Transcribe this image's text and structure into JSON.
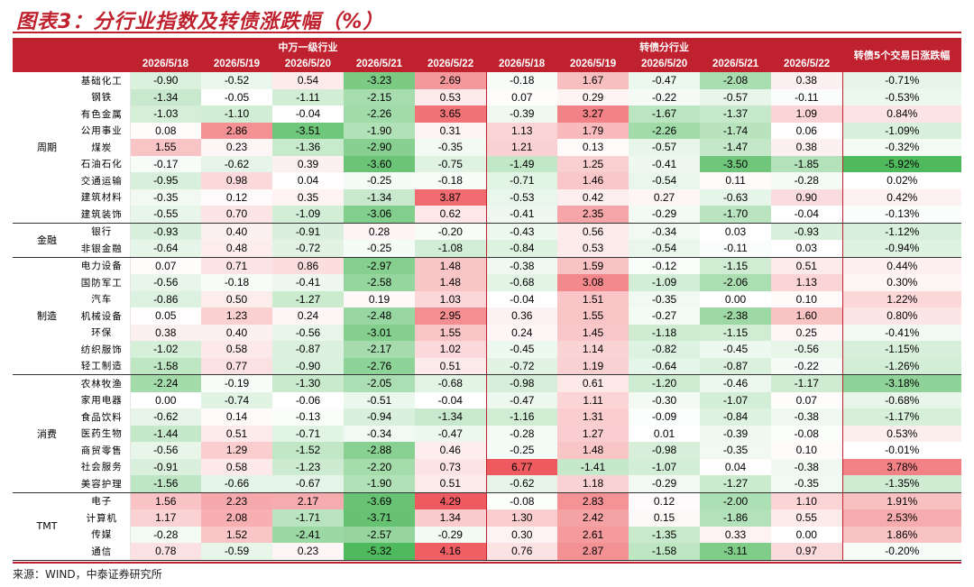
{
  "title": "图表3：分行业指数及转债涨跌幅（%）",
  "source": "来源：WIND，中泰证券研究所",
  "headers": {
    "group_left": "中万一级行业",
    "group_right": "转债分行业",
    "last_col": "转债5个交易日涨跌幅",
    "dates_left": [
      "2026/5/18",
      "2026/5/19",
      "2026/5/20",
      "2026/5/21",
      "2026/5/22"
    ],
    "dates_right": [
      "2026/5/18",
      "2026/5/19",
      "2026/5/20",
      "2026/5/21",
      "2026/5/22"
    ]
  },
  "colors": {
    "header_bg": "#c0212e",
    "pos_strong": "#ee5a5f",
    "neg_strong": "#4fba5d"
  },
  "groups": [
    {
      "sector": "周期",
      "rows": [
        {
          "industry": "基础化工",
          "left": [
            "-0.90",
            "-0.52",
            "0.54",
            "-3.23",
            "2.69"
          ],
          "right": [
            "-0.18",
            "1.67",
            "-0.47",
            "-2.08",
            "0.38"
          ],
          "week": "-0.71%"
        },
        {
          "industry": "钢铁",
          "left": [
            "-1.34",
            "-0.05",
            "-1.11",
            "-2.15",
            "0.53"
          ],
          "right": [
            "0.07",
            "0.29",
            "-0.22",
            "-0.57",
            "-0.11"
          ],
          "week": "-0.53%"
        },
        {
          "industry": "有色金属",
          "left": [
            "-1.03",
            "-1.10",
            "-0.04",
            "-2.26",
            "3.65"
          ],
          "right": [
            "-0.39",
            "3.27",
            "-1.67",
            "-1.37",
            "1.09"
          ],
          "week": "0.84%"
        },
        {
          "industry": "公用事业",
          "left": [
            "0.08",
            "2.86",
            "-3.51",
            "-1.90",
            "0.31"
          ],
          "right": [
            "1.13",
            "1.79",
            "-2.26",
            "-1.74",
            "0.06"
          ],
          "week": "-1.09%"
        },
        {
          "industry": "煤炭",
          "left": [
            "1.55",
            "0.23",
            "-1.36",
            "-2.90",
            "-0.35"
          ],
          "right": [
            "1.21",
            "0.13",
            "-0.57",
            "-1.47",
            "0.38"
          ],
          "week": "-0.32%"
        },
        {
          "industry": "石油石化",
          "left": [
            "-0.17",
            "-0.62",
            "0.39",
            "-3.60",
            "-0.75"
          ],
          "right": [
            "-1.49",
            "1.25",
            "-0.41",
            "-3.50",
            "-1.85"
          ],
          "week": "-5.92%"
        },
        {
          "industry": "交通运输",
          "left": [
            "-0.95",
            "0.98",
            "0.04",
            "-0.25",
            "-0.18"
          ],
          "right": [
            "-0.71",
            "1.46",
            "-0.54",
            "0.11",
            "-0.28"
          ],
          "week": "0.02%"
        },
        {
          "industry": "建筑材料",
          "left": [
            "-0.35",
            "0.12",
            "0.35",
            "-1.34",
            "3.87"
          ],
          "right": [
            "-0.53",
            "0.42",
            "0.27",
            "-0.63",
            "0.90"
          ],
          "week": "0.42%"
        },
        {
          "industry": "建筑装饰",
          "left": [
            "-0.55",
            "0.70",
            "-1.09",
            "-3.06",
            "0.62"
          ],
          "right": [
            "-0.41",
            "2.35",
            "-0.29",
            "-1.70",
            "-0.04"
          ],
          "week": "-0.13%"
        }
      ]
    },
    {
      "sector": "金融",
      "rows": [
        {
          "industry": "银行",
          "left": [
            "-0.93",
            "0.40",
            "-0.91",
            "0.28",
            "-0.20"
          ],
          "right": [
            "-0.43",
            "0.56",
            "-0.34",
            "0.03",
            "-0.93"
          ],
          "week": "-1.12%"
        },
        {
          "industry": "非银金融",
          "left": [
            "-0.64",
            "0.48",
            "-0.72",
            "-0.25",
            "-1.08"
          ],
          "right": [
            "-0.84",
            "0.53",
            "-0.54",
            "-0.11",
            "0.03"
          ],
          "week": "-0.94%"
        }
      ]
    },
    {
      "sector": "制造",
      "rows": [
        {
          "industry": "电力设备",
          "left": [
            "0.07",
            "0.71",
            "0.86",
            "-2.97",
            "1.48"
          ],
          "right": [
            "-0.38",
            "1.59",
            "-0.12",
            "-1.15",
            "0.51"
          ],
          "week": "0.44%"
        },
        {
          "industry": "国防军工",
          "left": [
            "-0.56",
            "-0.18",
            "-0.41",
            "-2.58",
            "1.48"
          ],
          "right": [
            "-0.68",
            "3.08",
            "-1.09",
            "-2.06",
            "1.13"
          ],
          "week": "0.30%"
        },
        {
          "industry": "汽车",
          "left": [
            "-0.86",
            "0.50",
            "-1.27",
            "0.19",
            "1.03"
          ],
          "right": [
            "-0.04",
            "1.51",
            "-0.35",
            "0.00",
            "0.10"
          ],
          "week": "1.22%"
        },
        {
          "industry": "机械设备",
          "left": [
            "0.05",
            "1.23",
            "0.24",
            "-2.48",
            "2.95"
          ],
          "right": [
            "0.36",
            "1.55",
            "-0.27",
            "-2.38",
            "1.60"
          ],
          "week": "0.80%"
        },
        {
          "industry": "环保",
          "left": [
            "0.38",
            "0.40",
            "-0.56",
            "-3.01",
            "1.55"
          ],
          "right": [
            "0.24",
            "1.45",
            "-1.18",
            "-1.15",
            "0.25"
          ],
          "week": "-0.41%"
        },
        {
          "industry": "纺织服饰",
          "left": [
            "-1.02",
            "0.58",
            "-0.87",
            "-2.17",
            "1.02"
          ],
          "right": [
            "-0.45",
            "1.14",
            "-0.82",
            "-0.45",
            "-0.56"
          ],
          "week": "-1.15%"
        },
        {
          "industry": "轻工制造",
          "left": [
            "-1.58",
            "0.77",
            "-0.90",
            "-2.76",
            "0.51"
          ],
          "right": [
            "-0.72",
            "1.19",
            "-0.64",
            "-0.87",
            "-0.22"
          ],
          "week": "-1.26%"
        }
      ]
    },
    {
      "sector": "消费",
      "rows": [
        {
          "industry": "农林牧渔",
          "left": [
            "-2.24",
            "-0.19",
            "-1.30",
            "-2.05",
            "-0.68"
          ],
          "right": [
            "-0.98",
            "0.61",
            "-1.20",
            "-0.46",
            "-1.17"
          ],
          "week": "-3.18%"
        },
        {
          "industry": "家用电器",
          "left": [
            "0.00",
            "-0.74",
            "-0.06",
            "-0.51",
            "-0.04"
          ],
          "right": [
            "-0.47",
            "1.11",
            "-0.30",
            "-1.07",
            "0.07"
          ],
          "week": "-0.68%"
        },
        {
          "industry": "食品饮料",
          "left": [
            "-0.62",
            "0.14",
            "-0.13",
            "-0.94",
            "-1.34"
          ],
          "right": [
            "-1.16",
            "1.31",
            "-0.09",
            "-0.84",
            "-0.38"
          ],
          "week": "-1.17%"
        },
        {
          "industry": "医药生物",
          "left": [
            "-1.44",
            "0.51",
            "-0.71",
            "-0.34",
            "-0.47"
          ],
          "right": [
            "-0.28",
            "1.27",
            "0.01",
            "-0.39",
            "-0.08"
          ],
          "week": "0.53%"
        },
        {
          "industry": "商贸零售",
          "left": [
            "-0.56",
            "1.29",
            "-1.52",
            "-2.88",
            "0.46"
          ],
          "right": [
            "-0.25",
            "1.48",
            "-0.98",
            "-0.35",
            "0.10"
          ],
          "week": "-0.01%"
        },
        {
          "industry": "社会服务",
          "left": [
            "-0.91",
            "0.58",
            "-1.23",
            "-2.20",
            "0.73"
          ],
          "right": [
            "6.77",
            "-1.41",
            "-1.07",
            "0.04",
            "-0.38"
          ],
          "week": "3.78%"
        },
        {
          "industry": "美容护理",
          "left": [
            "-1.56",
            "-0.66",
            "-0.67",
            "-1.90",
            "0.51"
          ],
          "right": [
            "-0.62",
            "1.18",
            "-0.29",
            "-1.27",
            "-0.35"
          ],
          "week": "-1.35%"
        }
      ]
    },
    {
      "sector": "TMT",
      "rows": [
        {
          "industry": "电子",
          "left": [
            "1.56",
            "2.23",
            "2.17",
            "-3.69",
            "4.29"
          ],
          "right": [
            "-0.08",
            "2.83",
            "0.12",
            "-2.00",
            "1.10"
          ],
          "week": "1.91%"
        },
        {
          "industry": "计算机",
          "left": [
            "1.17",
            "2.08",
            "-1.71",
            "-3.71",
            "1.34"
          ],
          "right": [
            "1.30",
            "2.42",
            "0.15",
            "-1.86",
            "0.55"
          ],
          "week": "2.53%"
        },
        {
          "industry": "传媒",
          "left": [
            "-0.28",
            "1.52",
            "-2.41",
            "-2.57",
            "-0.29"
          ],
          "right": [
            "0.30",
            "2.61",
            "-1.35",
            "0.33",
            "0.00"
          ],
          "week": "1.86%"
        },
        {
          "industry": "通信",
          "left": [
            "0.78",
            "-0.59",
            "0.23",
            "-5.32",
            "4.16"
          ],
          "right": [
            "0.76",
            "2.87",
            "-1.58",
            "-3.11",
            "0.97"
          ],
          "week": "-0.20%"
        }
      ]
    }
  ]
}
